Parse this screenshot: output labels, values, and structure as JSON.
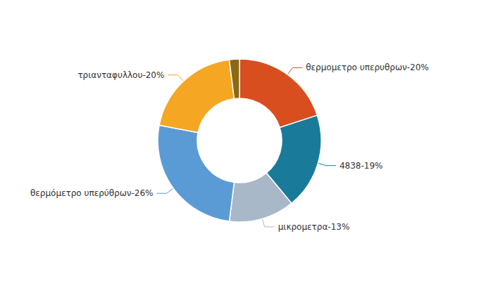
{
  "chart_data": {
    "type": "pie",
    "categories": [
      "θερμομετρο υπερυθρων-20%",
      "4838-19%",
      "μικρομετρα-13%",
      "θερμόμετρο υπερύθρων-26%",
      "τριανταφυλλου-20%",
      null
    ],
    "values": [
      20,
      19,
      13,
      26,
      20,
      2
    ],
    "colors": [
      "#d94e1f",
      "#1a7a9a",
      "#a8b8c8",
      "#5b9bd5",
      "#f5a623",
      "#8b6914"
    ],
    "legend": false
  }
}
